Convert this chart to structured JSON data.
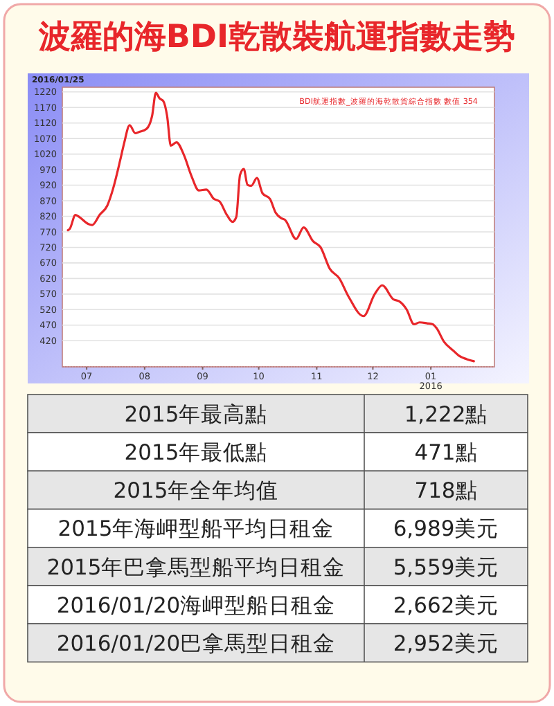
{
  "chart_data": {
    "type": "line",
    "title": "波羅的海BDI乾散裝航運指數走勢",
    "x": [
      "2015-06-21",
      "2015-06-22",
      "2015-06-25",
      "2015-06-27",
      "2015-07-02",
      "2015-07-04",
      "2015-07-08",
      "2015-07-12",
      "2015-07-15",
      "2015-07-19",
      "2015-07-21",
      "2015-07-24",
      "2015-07-27",
      "2015-07-29",
      "2015-08-02",
      "2015-08-05",
      "2015-08-07",
      "2015-08-09",
      "2015-08-11",
      "2015-08-13",
      "2015-08-15",
      "2015-08-18",
      "2015-08-22",
      "2015-08-26",
      "2015-08-30",
      "2015-09-03",
      "2015-09-07",
      "2015-09-10",
      "2015-09-14",
      "2015-09-17",
      "2015-09-19",
      "2015-09-21",
      "2015-09-23",
      "2015-09-25",
      "2015-09-27",
      "2015-09-30",
      "2015-10-03",
      "2015-10-07",
      "2015-10-10",
      "2015-10-13",
      "2015-10-15",
      "2015-10-21",
      "2015-10-25",
      "2015-10-30",
      "2015-11-03",
      "2015-11-08",
      "2015-11-13",
      "2015-11-18",
      "2015-11-26",
      "2015-12-02",
      "2015-12-06",
      "2015-12-12",
      "2015-12-15",
      "2015-12-19",
      "2015-12-23",
      "2015-12-26",
      "2015-12-30",
      "2016-01-02",
      "2016-01-04",
      "2016-01-08",
      "2016-01-13",
      "2016-01-16",
      "2016-01-20",
      "2016-01-24"
    ],
    "series": [
      {
        "name": "BDI航運指數_波羅的海乾散貨綜合指數 數值 354",
        "color": "#e8262a",
        "values": [
          775,
          780,
          824,
          818,
          795,
          792,
          825,
          854,
          906,
          1002,
          1054,
          1113,
          1087,
          1091,
          1101,
          1143,
          1217,
          1199,
          1190,
          1143,
          1047,
          1058,
          1017,
          950,
          903,
          906,
          876,
          868,
          824,
          802,
          818,
          953,
          972,
          921,
          918,
          943,
          894,
          876,
          832,
          814,
          809,
          747,
          784,
          740,
          721,
          651,
          621,
          562,
          499,
          570,
          598,
          553,
          547,
          521,
          473,
          479,
          476,
          473,
          461,
          417,
          388,
          372,
          361,
          354
        ]
      }
    ],
    "xlim": [
      "2015-06-18",
      "2016-02-04"
    ],
    "xticks": [
      {
        "value": "2015-07-01",
        "label": "07"
      },
      {
        "value": "2015-08-01",
        "label": "08"
      },
      {
        "value": "2015-09-01",
        "label": "09"
      },
      {
        "value": "2015-10-01",
        "label": "10"
      },
      {
        "value": "2015-11-01",
        "label": "11"
      },
      {
        "value": "2015-12-01",
        "label": "12"
      },
      {
        "value": "2016-01-01",
        "label": "01\n2016"
      }
    ],
    "ylim": [
      336,
      1235
    ],
    "yticks": [
      420,
      470,
      520,
      570,
      620,
      670,
      720,
      770,
      820,
      870,
      920,
      970,
      1020,
      1070,
      1120,
      1170,
      1220
    ],
    "grid": "y",
    "legend": "top right",
    "line_style": "solid",
    "marker": "none",
    "annotations": [
      "2016/01/25",
      "2015年最高點",
      "1,222點",
      "2015年最低點",
      "471點",
      "2015年全年均值",
      "718點",
      "2015年海岬型船平均日租金",
      "6,989美元",
      "2015年巴拿馬型船平均日租金",
      "5,559美元",
      "2016/01/20海岬型船日租金",
      "2,662美元",
      "2016/01/20巴拿馬型日租金",
      "2,952美元"
    ]
  }
}
